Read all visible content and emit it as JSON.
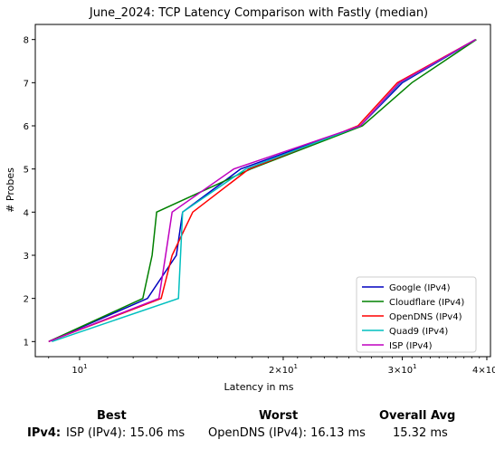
{
  "chart_data": {
    "type": "line",
    "title": "June_2024: TCP Latency Comparison with Fastly (median)",
    "xlabel": "Latency in ms",
    "ylabel": "# Probes",
    "xscale": "log",
    "xlim": [
      8.6,
      40.5
    ],
    "ylim": [
      0.65,
      8.35
    ],
    "x_tick_labels": [
      {
        "value": 10,
        "base": "10",
        "exp": "1"
      },
      {
        "value": 20,
        "base": "2×10",
        "exp": "1"
      },
      {
        "value": 30,
        "base": "3×10",
        "exp": "1"
      },
      {
        "value": 40,
        "base": "4×10",
        "exp": "1"
      }
    ],
    "y_ticks": [
      1,
      2,
      3,
      4,
      5,
      6,
      7,
      8
    ],
    "legend_position": "lower-right",
    "series": [
      {
        "name": "Google (IPv4)",
        "color": "#0000bf",
        "x": [
          9.0,
          12.6,
          13.9,
          14.2,
          17.3,
          26.0,
          30.0,
          38.5
        ],
        "y": [
          1,
          2,
          3,
          4,
          5,
          6,
          7,
          8
        ]
      },
      {
        "name": "Cloudflare (IPv4)",
        "color": "#008000",
        "x": [
          9.0,
          12.4,
          12.8,
          13.0,
          17.9,
          26.2,
          31.0,
          38.6
        ],
        "y": [
          1,
          2,
          3,
          4,
          5,
          6,
          7,
          8
        ]
      },
      {
        "name": "OpenDNS (IPv4)",
        "color": "#ff0000",
        "x": [
          9.0,
          13.2,
          13.7,
          14.7,
          17.8,
          25.8,
          29.5,
          38.5
        ],
        "y": [
          1,
          2,
          3,
          4,
          5,
          6,
          7,
          8
        ]
      },
      {
        "name": "Quad9 (IPv4)",
        "color": "#00bfbf",
        "x": [
          9.1,
          14.0,
          14.1,
          14.2,
          17.6,
          26.0,
          29.8,
          38.5
        ],
        "y": [
          1,
          2,
          3,
          4,
          5,
          6,
          7,
          8
        ]
      },
      {
        "name": "ISP (IPv4)",
        "color": "#bf00bf",
        "x": [
          9.0,
          13.1,
          13.4,
          13.7,
          16.9,
          26.0,
          29.7,
          38.5
        ],
        "y": [
          1,
          2,
          3,
          4,
          5,
          6,
          7,
          8
        ]
      }
    ]
  },
  "summary": {
    "headers": {
      "best": "Best",
      "worst": "Worst",
      "overall": "Overall Avg"
    },
    "row_label": "IPv4:",
    "best": "ISP (IPv4): 15.06 ms",
    "worst": "OpenDNS (IPv4): 16.13 ms",
    "overall": "15.32 ms"
  }
}
